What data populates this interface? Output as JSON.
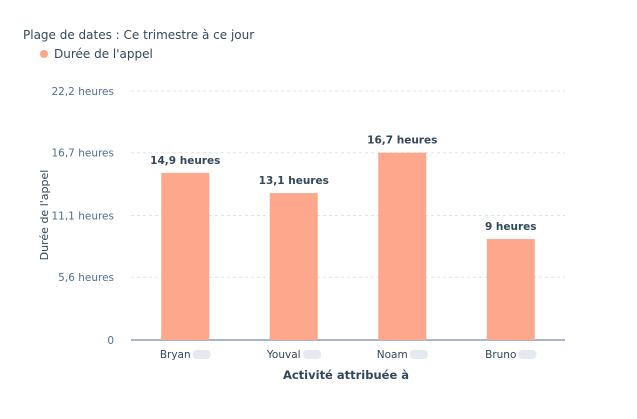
{
  "filter": {
    "label": "Plage de dates : Ce trimestre à ce jour"
  },
  "colors": {
    "bar": "#ffa78d",
    "grid": "#dfe3eb",
    "axis": "#516f90"
  },
  "chart_data": {
    "type": "bar",
    "title": "",
    "legend": {
      "placement": "top-left",
      "entries": [
        "Durée de l'appel"
      ]
    },
    "xlabel": "Activité attribuée à",
    "ylabel": "Durée de l'appel",
    "categories": [
      "Bryan",
      "Youval",
      "Noam",
      "Bruno"
    ],
    "series": [
      {
        "name": "Durée de l'appel",
        "values": [
          14.9,
          13.1,
          16.7,
          9
        ],
        "data_labels": [
          "14,9 heures",
          "13,1 heures",
          "16,7 heures",
          "9 heures"
        ]
      }
    ],
    "ylim": [
      0,
      22.2
    ],
    "yticks": [
      0,
      5.6,
      11.1,
      16.7,
      22.2
    ],
    "ytick_labels": [
      "0",
      "5,6 heures",
      "11,1 heures",
      "16,7 heures",
      "22,2 heures"
    ],
    "grid": true
  }
}
